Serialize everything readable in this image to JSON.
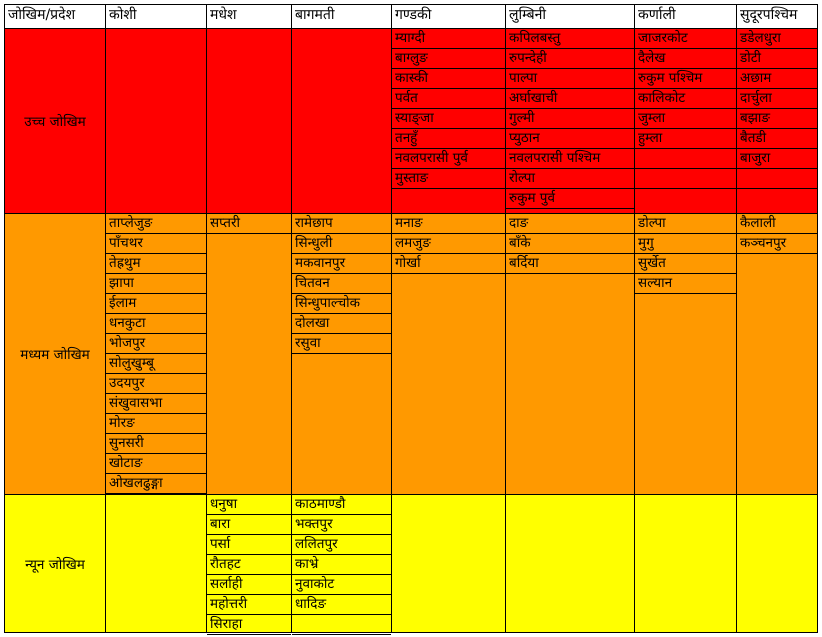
{
  "colors": {
    "high": "#ff0000",
    "medium": "#ff9900",
    "low": "#ffff00",
    "header": "#ffffff",
    "border": "#000000"
  },
  "headers": [
    "जोखिम/प्रदेश",
    "कोशी",
    "मधेश",
    "बागमती",
    "गण्डकी",
    "लुम्बिनी",
    "कर्णाली",
    "सुदूरपश्चिम"
  ],
  "tiers": [
    {
      "label": "उच्च जोखिम",
      "color_key": "high",
      "districts": [
        [],
        [],
        [],
        [
          "म्याग्दी",
          "बाग्लुङ",
          "कास्की",
          "पर्वत",
          "स्याङ्जा",
          "तनहुँ",
          "नवलपरासी पुर्व",
          "मुस्ताङ"
        ],
        [
          "कपिलबस्तु",
          "रुपन्देही",
          "पाल्पा",
          "अर्घाखाची",
          "गुल्मी",
          "प्युठान",
          "नवलपरासी पश्चिम",
          "रोल्पा",
          "रुकुम पुर्व"
        ],
        [
          "जाजरकोट",
          "दैलेख",
          "रुकुम पश्चिम",
          "कालिकोट",
          "जुम्ला",
          "हुम्ला",
          "",
          ""
        ],
        [
          "डडेलधुरा",
          "डोटी",
          "अछाम",
          "दार्चुला",
          "बझाङ",
          "बैतडी",
          "बाजुरा",
          ""
        ]
      ]
    },
    {
      "label": "मध्यम जोखिम",
      "color_key": "medium",
      "districts": [
        [
          "ताप्लेजुङ",
          "पाँचथर",
          "तेह्रथुम",
          "झापा",
          "ईलाम",
          "धनकुटा",
          "भोजपुर",
          "सोलुखुम्बू",
          "उदयपुर",
          "संखुवासभा",
          "मोरङ",
          "सुनसरी",
          "खोटाङ",
          "ओखलढुङ्गा"
        ],
        [
          "सप्तरी"
        ],
        [
          "रामेछाप",
          "सिन्धुली",
          "मकवानपुर",
          "चितवन",
          "सिन्धुपाल्चोक",
          "दोलखा",
          "रसुवा"
        ],
        [
          "मनाङ",
          "लमजुङ",
          "गोर्खा"
        ],
        [
          "दाङ",
          "बाँके",
          "बर्दिया"
        ],
        [
          "डोल्पा",
          "मुगु",
          "सुर्खेत",
          "सल्यान"
        ],
        [
          "कैलाली",
          "कञ्चनपुर"
        ]
      ]
    },
    {
      "label": "न्यून जोखिम",
      "color_key": "low",
      "districts": [
        [],
        [
          "धनुषा",
          "बारा",
          "पर्सा",
          "रौतहट",
          "सर्लाही",
          "महोत्तरी",
          "सिराहा"
        ],
        [
          "काठमाण्डौ",
          "भक्तपुर",
          "ललितपुर",
          "काभ्रे",
          "नुवाकोट",
          "धादिङ",
          ""
        ],
        [],
        [],
        [],
        []
      ]
    }
  ]
}
